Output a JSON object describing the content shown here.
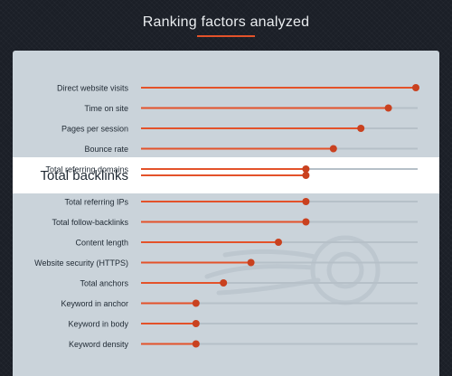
{
  "header": {
    "title": "Ranking factors analyzed"
  },
  "colors": {
    "accent": "#e3522a",
    "dot": "#c9411f",
    "track": "#b6c0c8",
    "panel": "#cad3da",
    "highlight_band": "#ffffff",
    "label": "#1f2933",
    "background": "#1b1f27"
  },
  "highlighted_factor": "Total backlinks",
  "chart_data": {
    "type": "bar",
    "orientation": "horizontal",
    "title": "Ranking factors analyzed",
    "categories": [
      "Direct website visits",
      "Time on site",
      "Pages per session",
      "Bounce rate",
      "Total referring domains",
      "Total backlinks",
      "Total referring IPs",
      "Total follow-backlinks",
      "Content length",
      "Website security (HTTPS)",
      "Total anchors",
      "Keyword in anchor",
      "Keyword in body",
      "Keyword density"
    ],
    "values": [
      100,
      90,
      80,
      70,
      60,
      60,
      60,
      60,
      50,
      40,
      30,
      20,
      20,
      20
    ],
    "xlim": [
      0,
      100
    ],
    "xlabel": "",
    "ylabel": "",
    "grid": false,
    "legend": "none"
  }
}
